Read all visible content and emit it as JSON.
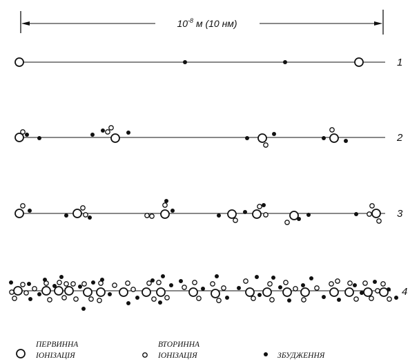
{
  "scale": {
    "base": "10",
    "exponent": "-8",
    "unit_text": " м (10 нм)"
  },
  "tracks": [
    {
      "label": "1",
      "points": [
        {
          "kind": "primary",
          "offset": [
            0,
            0
          ]
        },
        {
          "kind": "excitation",
          "offset": [
            240,
            0
          ]
        },
        {
          "kind": "excitation",
          "offset": [
            385,
            0
          ]
        },
        {
          "kind": "primary",
          "offset": [
            492,
            0
          ]
        }
      ]
    },
    {
      "label": "2",
      "points": [
        {
          "kind": "primary",
          "offset": [
            0,
            0
          ]
        },
        {
          "kind": "secondary",
          "offset": [
            5,
            -8
          ]
        },
        {
          "kind": "excitation",
          "offset": [
            11,
            -4
          ]
        },
        {
          "kind": "excitation",
          "offset": [
            29,
            1
          ]
        },
        {
          "kind": "excitation",
          "offset": [
            106,
            -4
          ]
        },
        {
          "kind": "excitation",
          "offset": [
            121,
            -10
          ]
        },
        {
          "kind": "secondary",
          "offset": [
            133,
            -14
          ]
        },
        {
          "kind": "secondary",
          "offset": [
            128,
            -8
          ]
        },
        {
          "kind": "primary",
          "offset": [
            139,
            1
          ]
        },
        {
          "kind": "excitation",
          "offset": [
            158,
            -7
          ]
        },
        {
          "kind": "excitation",
          "offset": [
            330,
            1
          ]
        },
        {
          "kind": "primary",
          "offset": [
            352,
            1
          ]
        },
        {
          "kind": "secondary",
          "offset": [
            357,
            11
          ]
        },
        {
          "kind": "excitation",
          "offset": [
            369,
            -5
          ]
        },
        {
          "kind": "excitation",
          "offset": [
            441,
            1
          ]
        },
        {
          "kind": "primary",
          "offset": [
            456,
            1
          ]
        },
        {
          "kind": "secondary",
          "offset": [
            453,
            -11
          ]
        },
        {
          "kind": "excitation",
          "offset": [
            473,
            5
          ]
        }
      ]
    },
    {
      "label": "3",
      "points": [
        {
          "kind": "primary",
          "offset": [
            0,
            0
          ]
        },
        {
          "kind": "secondary",
          "offset": [
            5,
            -11
          ]
        },
        {
          "kind": "excitation",
          "offset": [
            15,
            -4
          ]
        },
        {
          "kind": "excitation",
          "offset": [
            68,
            3
          ]
        },
        {
          "kind": "primary",
          "offset": [
            84,
            0
          ]
        },
        {
          "kind": "secondary",
          "offset": [
            92,
            -8
          ]
        },
        {
          "kind": "secondary",
          "offset": [
            96,
            2
          ]
        },
        {
          "kind": "excitation",
          "offset": [
            102,
            6
          ]
        },
        {
          "kind": "secondary",
          "offset": [
            185,
            3
          ]
        },
        {
          "kind": "secondary",
          "offset": [
            192,
            4
          ]
        },
        {
          "kind": "primary",
          "offset": [
            211,
            1
          ]
        },
        {
          "kind": "secondary",
          "offset": [
            211,
            -12
          ]
        },
        {
          "kind": "excitation",
          "offset": [
            213,
            -18
          ]
        },
        {
          "kind": "excitation",
          "offset": [
            222,
            -4
          ]
        },
        {
          "kind": "excitation",
          "offset": [
            289,
            3
          ]
        },
        {
          "kind": "primary",
          "offset": [
            308,
            1
          ]
        },
        {
          "kind": "secondary",
          "offset": [
            313,
            10
          ]
        },
        {
          "kind": "excitation",
          "offset": [
            327,
            -2
          ]
        },
        {
          "kind": "primary",
          "offset": [
            344,
            1
          ]
        },
        {
          "kind": "secondary",
          "offset": [
            348,
            -10
          ]
        },
        {
          "kind": "excitation",
          "offset": [
            354,
            -12
          ]
        },
        {
          "kind": "secondary",
          "offset": [
            357,
            2
          ]
        },
        {
          "kind": "secondary",
          "offset": [
            388,
            13
          ]
        },
        {
          "kind": "primary",
          "offset": [
            398,
            3
          ]
        },
        {
          "kind": "excitation",
          "offset": [
            405,
            8
          ]
        },
        {
          "kind": "excitation",
          "offset": [
            419,
            2
          ]
        },
        {
          "kind": "excitation",
          "offset": [
            488,
            1
          ]
        },
        {
          "kind": "secondary",
          "offset": [
            507,
            1
          ]
        },
        {
          "kind": "secondary",
          "offset": [
            511,
            -11
          ]
        },
        {
          "kind": "primary",
          "offset": [
            517,
            0
          ]
        },
        {
          "kind": "secondary",
          "offset": [
            521,
            11
          ]
        }
      ]
    },
    {
      "label": "4",
      "points": [
        {
          "kind": "excitation",
          "offset": [
            -10,
            -12
          ]
        },
        {
          "kind": "primary",
          "offset": [
            0,
            0
          ]
        },
        {
          "kind": "secondary",
          "offset": [
            -9,
            2
          ]
        },
        {
          "kind": "secondary",
          "offset": [
            -5,
            11
          ]
        },
        {
          "kind": "secondary",
          "offset": [
            7,
            -9
          ]
        },
        {
          "kind": "excitation",
          "offset": [
            16,
            -10
          ]
        },
        {
          "kind": "secondary",
          "offset": [
            12,
            3
          ]
        },
        {
          "kind": "excitation",
          "offset": [
            18,
            12
          ]
        },
        {
          "kind": "secondary",
          "offset": [
            24,
            -3
          ]
        },
        {
          "kind": "excitation",
          "offset": [
            31,
            5
          ]
        },
        {
          "kind": "primary",
          "offset": [
            41,
            0
          ]
        },
        {
          "kind": "secondary",
          "offset": [
            41,
            -11
          ]
        },
        {
          "kind": "excitation",
          "offset": [
            39,
            -16
          ]
        },
        {
          "kind": "secondary",
          "offset": [
            46,
            13
          ]
        },
        {
          "kind": "excitation",
          "offset": [
            53,
            -7
          ]
        },
        {
          "kind": "primary",
          "offset": [
            59,
            0
          ]
        },
        {
          "kind": "secondary",
          "offset": [
            60,
            -12
          ]
        },
        {
          "kind": "excitation",
          "offset": [
            63,
            -20
          ]
        },
        {
          "kind": "secondary",
          "offset": [
            67,
            10
          ]
        },
        {
          "kind": "primary",
          "offset": [
            74,
            0
          ]
        },
        {
          "kind": "secondary",
          "offset": [
            70,
            -10
          ]
        },
        {
          "kind": "secondary",
          "offset": [
            80,
            -10
          ]
        },
        {
          "kind": "secondary",
          "offset": [
            84,
            12
          ]
        },
        {
          "kind": "excitation",
          "offset": [
            90,
            -6
          ]
        },
        {
          "kind": "primary",
          "offset": [
            101,
            2
          ]
        },
        {
          "kind": "secondary",
          "offset": [
            96,
            -10
          ]
        },
        {
          "kind": "excitation",
          "offset": [
            95,
            26
          ]
        },
        {
          "kind": "secondary",
          "offset": [
            106,
            12
          ]
        },
        {
          "kind": "excitation",
          "offset": [
            109,
            -12
          ]
        },
        {
          "kind": "primary",
          "offset": [
            120,
            2
          ]
        },
        {
          "kind": "secondary",
          "offset": [
            120,
            -11
          ]
        },
        {
          "kind": "excitation",
          "offset": [
            122,
            -16
          ]
        },
        {
          "kind": "secondary",
          "offset": [
            118,
            14
          ]
        },
        {
          "kind": "excitation",
          "offset": [
            133,
            5
          ]
        },
        {
          "kind": "secondary",
          "offset": [
            140,
            -8
          ]
        },
        {
          "kind": "primary",
          "offset": [
            153,
            2
          ]
        },
        {
          "kind": "secondary",
          "offset": [
            159,
            -11
          ]
        },
        {
          "kind": "excitation",
          "offset": [
            160,
            18
          ]
        },
        {
          "kind": "secondary",
          "offset": [
            167,
            -2
          ]
        },
        {
          "kind": "excitation",
          "offset": [
            173,
            10
          ]
        },
        {
          "kind": "primary",
          "offset": [
            186,
            2
          ]
        },
        {
          "kind": "secondary",
          "offset": [
            190,
            -11
          ]
        },
        {
          "kind": "excitation",
          "offset": [
            195,
            -15
          ]
        },
        {
          "kind": "secondary",
          "offset": [
            197,
            12
          ]
        },
        {
          "kind": "excitation",
          "offset": [
            206,
            17
          ]
        },
        {
          "kind": "primary",
          "offset": [
            207,
            2
          ]
        },
        {
          "kind": "secondary",
          "offset": [
            204,
            -12
          ]
        },
        {
          "kind": "excitation",
          "offset": [
            210,
            -21
          ]
        },
        {
          "kind": "secondary",
          "offset": [
            216,
            10
          ]
        },
        {
          "kind": "excitation",
          "offset": [
            222,
            -8
          ]
        },
        {
          "kind": "excitation",
          "offset": [
            236,
            -14
          ]
        },
        {
          "kind": "secondary",
          "offset": [
            241,
            -5
          ]
        },
        {
          "kind": "primary",
          "offset": [
            254,
            2
          ]
        },
        {
          "kind": "secondary",
          "offset": [
            256,
            -12
          ]
        },
        {
          "kind": "secondary",
          "offset": [
            262,
            11
          ]
        },
        {
          "kind": "excitation",
          "offset": [
            268,
            -3
          ]
        },
        {
          "kind": "primary",
          "offset": [
            286,
            4
          ]
        },
        {
          "kind": "secondary",
          "offset": [
            282,
            -10
          ]
        },
        {
          "kind": "secondary",
          "offset": [
            291,
            14
          ]
        },
        {
          "kind": "excitation",
          "offset": [
            288,
            -21
          ]
        },
        {
          "kind": "secondary",
          "offset": [
            298,
            -4
          ]
        },
        {
          "kind": "excitation",
          "offset": [
            303,
            10
          ]
        },
        {
          "kind": "excitation",
          "offset": [
            320,
            -4
          ]
        },
        {
          "kind": "secondary",
          "offset": [
            330,
            -14
          ]
        },
        {
          "kind": "primary",
          "offset": [
            336,
            2
          ]
        },
        {
          "kind": "excitation",
          "offset": [
            346,
            -20
          ]
        },
        {
          "kind": "secondary",
          "offset": [
            341,
            11
          ]
        },
        {
          "kind": "excitation",
          "offset": [
            350,
            6
          ]
        },
        {
          "kind": "primary",
          "offset": [
            361,
            2
          ]
        },
        {
          "kind": "secondary",
          "offset": [
            365,
            -10
          ]
        },
        {
          "kind": "excitation",
          "offset": [
            370,
            -19
          ]
        },
        {
          "kind": "secondary",
          "offset": [
            368,
            13
          ]
        },
        {
          "kind": "excitation",
          "offset": [
            380,
            -5
          ]
        },
        {
          "kind": "primary",
          "offset": [
            390,
            2
          ]
        },
        {
          "kind": "secondary",
          "offset": [
            388,
            -12
          ]
        },
        {
          "kind": "excitation",
          "offset": [
            393,
            14
          ]
        },
        {
          "kind": "secondary",
          "offset": [
            402,
            -3
          ]
        },
        {
          "kind": "excitation",
          "offset": [
            413,
            -8
          ]
        },
        {
          "kind": "primary",
          "offset": [
            416,
            2
          ]
        },
        {
          "kind": "secondary",
          "offset": [
            414,
            13
          ]
        },
        {
          "kind": "excitation",
          "offset": [
            425,
            -18
          ]
        },
        {
          "kind": "secondary",
          "offset": [
            433,
            -4
          ]
        },
        {
          "kind": "excitation",
          "offset": [
            443,
            9
          ]
        },
        {
          "kind": "primary",
          "offset": [
            458,
            2
          ]
        },
        {
          "kind": "secondary",
          "offset": [
            454,
            -10
          ]
        },
        {
          "kind": "secondary",
          "offset": [
            463,
            -14
          ]
        },
        {
          "kind": "excitation",
          "offset": [
            465,
            13
          ]
        },
        {
          "kind": "primary",
          "offset": [
            480,
            2
          ]
        },
        {
          "kind": "secondary",
          "offset": [
            481,
            -11
          ]
        },
        {
          "kind": "excitation",
          "offset": [
            488,
            -8
          ]
        },
        {
          "kind": "secondary",
          "offset": [
            490,
            12
          ]
        },
        {
          "kind": "excitation",
          "offset": [
            498,
            3
          ]
        },
        {
          "kind": "primary",
          "offset": [
            507,
            2
          ]
        },
        {
          "kind": "secondary",
          "offset": [
            503,
            -11
          ]
        },
        {
          "kind": "secondary",
          "offset": [
            512,
            11
          ]
        },
        {
          "kind": "excitation",
          "offset": [
            517,
            -13
          ]
        },
        {
          "kind": "secondary",
          "offset": [
            521,
            0
          ]
        },
        {
          "kind": "primary",
          "offset": [
            530,
            2
          ]
        },
        {
          "kind": "secondary",
          "offset": [
            529,
            -10
          ]
        },
        {
          "kind": "excitation",
          "offset": [
            537,
            -2
          ]
        },
        {
          "kind": "secondary",
          "offset": [
            538,
            12
          ]
        },
        {
          "kind": "excitation",
          "offset": [
            548,
            10
          ]
        }
      ]
    }
  ],
  "legend": [
    {
      "kind": "primary",
      "lines": [
        "ПЕРВИННА",
        "ІОНІЗАЦІЯ"
      ]
    },
    {
      "kind": "secondary",
      "lines": [
        "ВТОРИННА",
        "ІОНІЗАЦІЯ"
      ]
    },
    {
      "kind": "excitation",
      "lines": [
        "ЗБУДЖЕННЯ"
      ]
    }
  ],
  "colors": {
    "ink": "#111111",
    "paper": "#ffffff"
  }
}
